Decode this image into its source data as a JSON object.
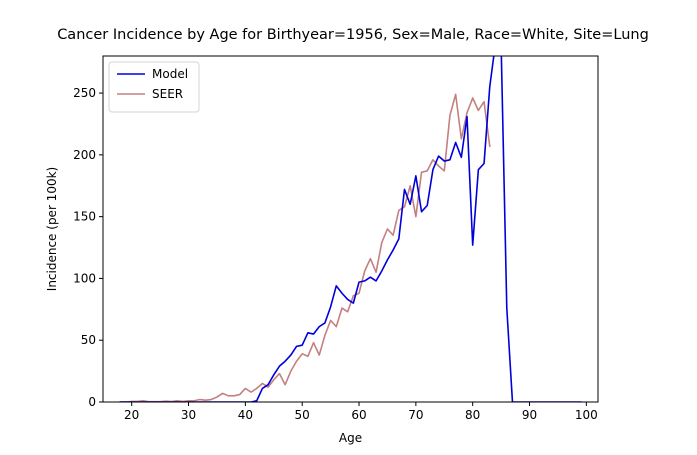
{
  "chart_data": {
    "type": "line",
    "title": "Cancer Incidence by Age for Birthyear=1956, Sex=Male, Race=White, Site=Lung",
    "xlabel": "Age",
    "ylabel": "Incidence (per 100k)",
    "xlim": [
      14.95,
      102.05
    ],
    "ylim": [
      0,
      280
    ],
    "xticks": [
      20,
      30,
      40,
      50,
      60,
      70,
      80,
      90,
      100
    ],
    "yticks": [
      0,
      50,
      100,
      150,
      200,
      250
    ],
    "grid": false,
    "legend_position": "top-left",
    "series": [
      {
        "name": "Model",
        "color": "#0000dd",
        "x": [
          18,
          19,
          20,
          21,
          22,
          23,
          24,
          25,
          26,
          27,
          28,
          29,
          30,
          31,
          32,
          33,
          34,
          35,
          36,
          37,
          38,
          39,
          40,
          41,
          42,
          43,
          44,
          45,
          46,
          47,
          48,
          49,
          50,
          51,
          52,
          53,
          54,
          55,
          56,
          57,
          58,
          59,
          60,
          61,
          62,
          63,
          64,
          65,
          66,
          67,
          68,
          69,
          70,
          71,
          72,
          73,
          74,
          75,
          76,
          77,
          78,
          79,
          80,
          81,
          82,
          83,
          84,
          85,
          86,
          87,
          88,
          89,
          90,
          91,
          92,
          93,
          94,
          95,
          96,
          97,
          98,
          99
        ],
        "y": [
          0,
          0,
          0,
          0,
          0,
          0,
          0,
          0,
          0,
          0,
          0,
          0,
          0,
          0,
          0,
          0,
          0,
          0,
          0,
          0,
          0,
          0,
          0,
          0,
          1,
          11,
          14,
          22,
          29,
          33,
          38,
          45,
          46,
          56,
          55,
          61,
          64,
          77,
          94,
          88,
          83,
          80,
          97,
          98,
          101,
          98,
          106,
          115,
          123,
          132,
          172,
          160,
          183,
          154,
          159,
          188,
          199,
          195,
          196,
          210,
          198,
          231,
          127,
          188,
          193,
          255,
          290,
          290,
          76,
          0,
          0,
          0,
          0,
          0,
          0,
          0,
          0,
          0,
          0,
          0,
          0,
          0
        ]
      },
      {
        "name": "SEER",
        "color": "#c48080",
        "x": [
          18,
          19,
          20,
          21,
          22,
          23,
          24,
          25,
          26,
          27,
          28,
          29,
          30,
          31,
          32,
          33,
          34,
          35,
          36,
          37,
          38,
          39,
          40,
          41,
          42,
          43,
          44,
          45,
          46,
          47,
          48,
          49,
          50,
          51,
          52,
          53,
          54,
          55,
          56,
          57,
          58,
          59,
          60,
          61,
          62,
          63,
          64,
          65,
          66,
          67,
          68,
          69,
          70,
          71,
          72,
          73,
          74,
          75,
          76,
          77,
          78,
          79,
          80,
          81,
          82,
          83
        ],
        "y": [
          0,
          0,
          0.5,
          0.5,
          1,
          0.3,
          0.3,
          0.3,
          0.7,
          0.4,
          1,
          0.5,
          1,
          1,
          2,
          1.5,
          2,
          4,
          7,
          5,
          5,
          6,
          11,
          8,
          11,
          15,
          12,
          18,
          23,
          14,
          25,
          33,
          39,
          37,
          48,
          38,
          54,
          66,
          61,
          76,
          73,
          86,
          88,
          106,
          116,
          105,
          129,
          140,
          135,
          155,
          158,
          175,
          150,
          186,
          187,
          196,
          191,
          187,
          232,
          249,
          213,
          234,
          246,
          236,
          243,
          207
        ]
      }
    ]
  }
}
